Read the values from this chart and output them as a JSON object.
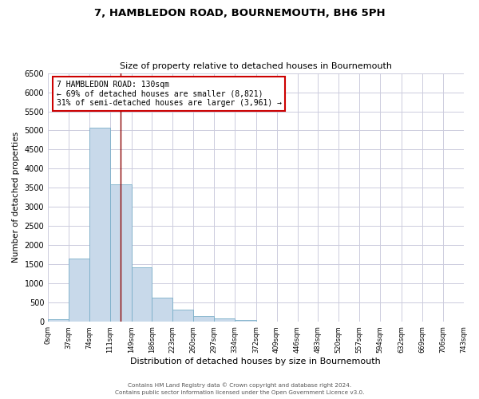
{
  "title": "7, HAMBLEDON ROAD, BOURNEMOUTH, BH6 5PH",
  "subtitle": "Size of property relative to detached houses in Bournemouth",
  "xlabel": "Distribution of detached houses by size in Bournemouth",
  "ylabel": "Number of detached properties",
  "bin_edges": [
    0,
    37,
    74,
    111,
    149,
    186,
    223,
    260,
    297,
    334,
    372,
    409,
    446,
    483,
    520,
    557,
    594,
    632,
    669,
    706,
    743
  ],
  "bin_labels": [
    "0sqm",
    "37sqm",
    "74sqm",
    "111sqm",
    "149sqm",
    "186sqm",
    "223sqm",
    "260sqm",
    "297sqm",
    "334sqm",
    "372sqm",
    "409sqm",
    "446sqm",
    "483sqm",
    "520sqm",
    "557sqm",
    "594sqm",
    "632sqm",
    "669sqm",
    "706sqm",
    "743sqm"
  ],
  "counts": [
    70,
    1650,
    5080,
    3600,
    1430,
    620,
    310,
    155,
    90,
    50,
    0,
    0,
    0,
    0,
    0,
    0,
    0,
    0,
    0,
    0
  ],
  "bar_color": "#c8d9ea",
  "bar_edge_color": "#7aafc8",
  "vline_x": 130,
  "vline_color": "#8b0000",
  "annotation_line1": "7 HAMBLEDON ROAD: 130sqm",
  "annotation_line2": "← 69% of detached houses are smaller (8,821)",
  "annotation_line3": "31% of semi-detached houses are larger (3,961) →",
  "annotation_box_color": "white",
  "annotation_box_edge_color": "#cc0000",
  "ylim": [
    0,
    6500
  ],
  "yticks": [
    0,
    500,
    1000,
    1500,
    2000,
    2500,
    3000,
    3500,
    4000,
    4500,
    5000,
    5500,
    6000,
    6500
  ],
  "footer_line1": "Contains HM Land Registry data © Crown copyright and database right 2024.",
  "footer_line2": "Contains public sector information licensed under the Open Government Licence v3.0.",
  "background_color": "#ffffff",
  "grid_color": "#ccccdd"
}
